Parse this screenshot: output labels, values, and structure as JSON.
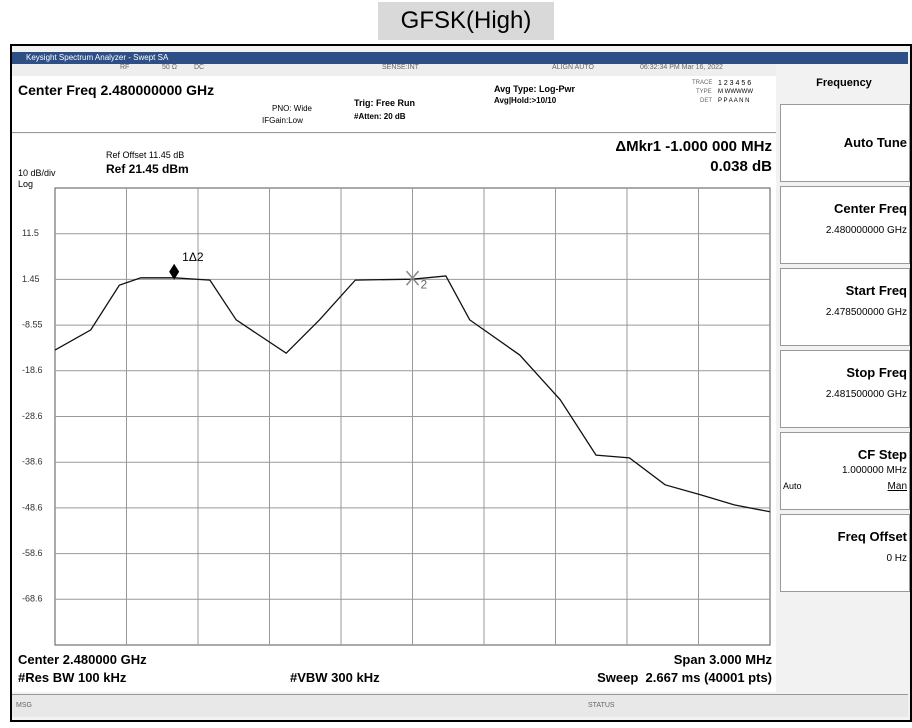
{
  "title": "GFSK(High)",
  "window_title": "Keysight Spectrum Analyzer - Swept SA",
  "status_bar": {
    "rf": "RF",
    "impedance": "50 Ω",
    "coupling": "DC",
    "sense": "SENSE:INT",
    "align": "ALIGN AUTO",
    "datetime": "06:32:34 PM Mar 16, 2022"
  },
  "header": {
    "center_freq": "Center Freq 2.480000000 GHz",
    "pno": "PNO: Wide",
    "ifgain": "IFGain:Low",
    "trig": "Trig: Free Run",
    "atten": "#Atten: 20 dB",
    "avg_type": "Avg Type: Log-Pwr",
    "avg_hold": "Avg|Hold:>10/10",
    "trace_label": "TRACE",
    "trace_nums": "1 2 3 4 5 6",
    "type_label": "TYPE",
    "type_vals": "M WWWWW",
    "det_label": "DET",
    "det_vals": "P P A A N N"
  },
  "plot_header": {
    "scale": "10 dB/div",
    "log": "Log",
    "ref_offset": "Ref Offset 11.45 dB",
    "ref_level": "Ref 21.45 dBm",
    "marker_readout": "ΔMkr1 -1.000 000 MHz",
    "marker_value": "0.038 dB"
  },
  "footer": {
    "center": "Center 2.480000 GHz",
    "rbw": "#Res BW 100 kHz",
    "vbw": "#VBW 300 kHz",
    "span": "Span 3.000 MHz",
    "sweep": "Sweep  2.667 ms (40001 pts)"
  },
  "softkeys": {
    "menu": "Frequency",
    "keys": [
      {
        "label": "Auto Tune"
      },
      {
        "label": "Center Freq",
        "value": "2.480000000 GHz"
      },
      {
        "label": "Start Freq",
        "value": "2.478500000 GHz"
      },
      {
        "label": "Stop Freq",
        "value": "2.481500000 GHz"
      },
      {
        "label": "CF Step",
        "value": "1.000000 MHz",
        "mode": "Auto",
        "option": "Man"
      },
      {
        "label": "Freq Offset",
        "value": "0 Hz"
      }
    ]
  },
  "message_bar": {
    "msg": "MSG",
    "status": "STATUS"
  },
  "chart_data": {
    "type": "line",
    "color": "#111111",
    "x": [
      2.4785,
      2.47865,
      2.47877,
      2.47886,
      2.479,
      2.47915,
      2.47926,
      2.47947,
      2.47961,
      2.47976,
      2.48,
      2.48014,
      2.48024,
      2.48045,
      2.48062,
      2.48077,
      2.48091,
      2.48106,
      2.48121,
      2.48135,
      2.4815
    ],
    "values": [
      -14.0,
      -9.6,
      0.2,
      1.8,
      1.8,
      1.3,
      -7.4,
      -14.7,
      -7.4,
      1.3,
      1.5,
      2.2,
      -7.4,
      -15.1,
      -24.9,
      -37.0,
      -37.6,
      -43.5,
      -45.7,
      -47.9,
      -49.4
    ],
    "xlim": [
      2.4785,
      2.4815
    ],
    "ylim": [
      -78.55,
      21.45
    ],
    "yticks": [
      {
        "value": 11.45,
        "label": "11.5"
      },
      1.45,
      -8.55,
      {
        "value": -18.55,
        "label": "-18.6"
      },
      {
        "value": -28.55,
        "label": "-28.6"
      },
      {
        "value": -38.55,
        "label": "-38.6"
      },
      {
        "value": -48.55,
        "label": "-48.6"
      },
      {
        "value": -58.55,
        "label": "-58.6"
      },
      {
        "value": -68.55,
        "label": "-68.6"
      }
    ],
    "grid": true,
    "markers": [
      {
        "label": "1Δ2",
        "x": 2.479,
        "y": 1.8
      },
      {
        "label": "2",
        "x": 2.48,
        "y": 1.5
      }
    ]
  }
}
